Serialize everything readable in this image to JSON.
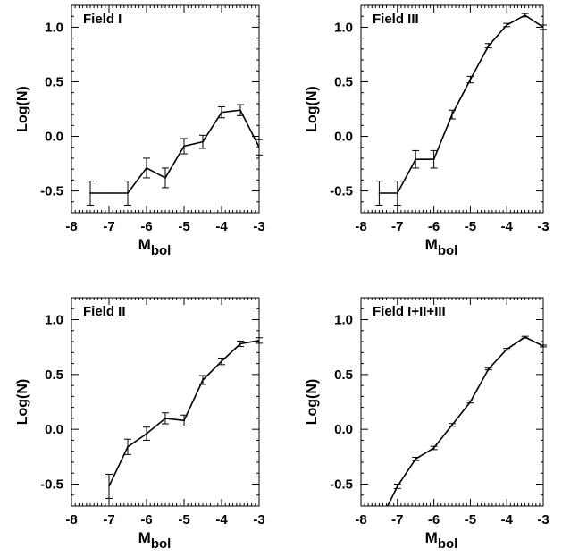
{
  "chart_data": [
    {
      "type": "line",
      "title": "Field I",
      "xlabel_main": "M",
      "xlabel_sub": "bol",
      "ylabel": "Log(N)",
      "xlim": [
        -8,
        -3
      ],
      "ylim": [
        -0.7,
        1.2
      ],
      "xticks": [
        -8,
        -7,
        -6,
        -5,
        -4,
        -3
      ],
      "yticks": [
        -0.5,
        0.0,
        0.5,
        1.0
      ],
      "ytick_labels": [
        "-0.5",
        "0.0",
        "0.5",
        "1.0"
      ],
      "x": [
        -7.5,
        -7.0,
        -6.5,
        -6.0,
        -5.5,
        -5.0,
        -4.5,
        -4.0,
        -3.5,
        -3.0
      ],
      "values": [
        -0.52,
        -0.52,
        -0.52,
        -0.29,
        -0.38,
        -0.09,
        -0.05,
        0.22,
        0.24,
        -0.1
      ],
      "errors": [
        0.11,
        0.11,
        0.11,
        0.09,
        0.09,
        0.07,
        0.06,
        0.05,
        0.05,
        0.07
      ],
      "error_x": [
        -7.5,
        -6.5,
        -6.0,
        -5.5,
        -5.0,
        -4.5,
        -4.0,
        -3.5,
        -3.0
      ]
    },
    {
      "type": "line",
      "title": "Field III",
      "xlabel_main": "M",
      "xlabel_sub": "bol",
      "ylabel": "Log(N)",
      "xlim": [
        -8,
        -3
      ],
      "ylim": [
        -0.7,
        1.2
      ],
      "xticks": [
        -8,
        -7,
        -6,
        -5,
        -4,
        -3
      ],
      "yticks": [
        -0.5,
        0.0,
        0.5,
        1.0
      ],
      "ytick_labels": [
        "-0.5",
        "0.0",
        "0.5",
        "1.0"
      ],
      "x": [
        -7.5,
        -7.0,
        -6.5,
        -6.0,
        -5.5,
        -5.0,
        -4.5,
        -4.0,
        -3.5,
        -3.0
      ],
      "values": [
        -0.52,
        -0.52,
        -0.21,
        -0.21,
        0.2,
        0.52,
        0.83,
        1.02,
        1.11,
        1.0
      ],
      "errors": [
        0.11,
        0.11,
        0.08,
        0.08,
        0.04,
        0.03,
        0.02,
        0.015,
        0.015,
        0.02
      ],
      "error_x": [
        -7.5,
        -7.0,
        -6.5,
        -6.0,
        -5.5,
        -5.0,
        -4.5,
        -4.0,
        -3.5,
        -3.0
      ]
    },
    {
      "type": "line",
      "title": "Field II",
      "xlabel_main": "M",
      "xlabel_sub": "bol",
      "ylabel": "Log(N)",
      "xlim": [
        -8,
        -3
      ],
      "ylim": [
        -0.7,
        1.2
      ],
      "xticks": [
        -8,
        -7,
        -6,
        -5,
        -4,
        -3
      ],
      "yticks": [
        -0.5,
        0.0,
        0.5,
        1.0
      ],
      "ytick_labels": [
        "-0.5",
        "0.0",
        "0.5",
        "1.0"
      ],
      "x": [
        -7.0,
        -6.5,
        -6.0,
        -5.5,
        -5.0,
        -4.5,
        -4.0,
        -3.5,
        -3.0
      ],
      "values": [
        -0.52,
        -0.16,
        -0.04,
        0.1,
        0.08,
        0.45,
        0.62,
        0.78,
        0.81
      ],
      "errors": [
        0.11,
        0.07,
        0.06,
        0.05,
        0.05,
        0.04,
        0.03,
        0.025,
        0.025
      ],
      "error_x": [
        -7.0,
        -6.5,
        -6.0,
        -5.5,
        -5.0,
        -4.5,
        -4.0,
        -3.5,
        -3.0
      ]
    },
    {
      "type": "line",
      "title": "Field I+II+III",
      "xlabel_main": "M",
      "xlabel_sub": "bol",
      "ylabel": "Log(N)",
      "xlim": [
        -8,
        -3
      ],
      "ylim": [
        -0.7,
        1.2
      ],
      "xticks": [
        -8,
        -7,
        -6,
        -5,
        -4,
        -3
      ],
      "yticks": [
        -0.5,
        0.0,
        0.5,
        1.0
      ],
      "ytick_labels": [
        "-0.5",
        "0.0",
        "0.5",
        "1.0"
      ],
      "x": [
        -7.3,
        -7.0,
        -6.5,
        -6.0,
        -5.5,
        -5.0,
        -4.5,
        -4.0,
        -3.5,
        -3.0
      ],
      "values": [
        -0.72,
        -0.52,
        -0.27,
        -0.17,
        0.04,
        0.25,
        0.55,
        0.73,
        0.84,
        0.76
      ],
      "errors": [
        0.0,
        0.02,
        0.015,
        0.015,
        0.012,
        0.01,
        0.008,
        0.008,
        0.008,
        0.008
      ],
      "error_x": [
        -7.0,
        -6.5,
        -6.0,
        -5.5,
        -5.0,
        -4.5,
        -4.0,
        -3.5,
        -3.0
      ]
    }
  ]
}
